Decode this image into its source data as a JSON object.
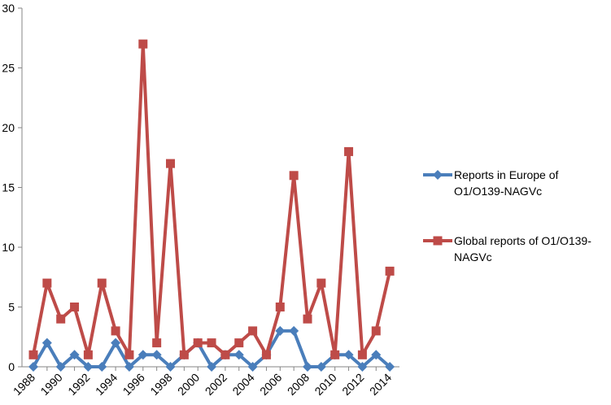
{
  "chart_data": {
    "type": "line",
    "title": "",
    "xlabel": "",
    "ylabel": "",
    "x": [
      1988,
      1989,
      1990,
      1991,
      1992,
      1993,
      1994,
      1995,
      1996,
      1997,
      1998,
      1999,
      2000,
      2001,
      2002,
      2003,
      2004,
      2005,
      2006,
      2007,
      2008,
      2009,
      2010,
      2011,
      2012,
      2013,
      2014
    ],
    "x_tick_labels": [
      "1988",
      "1990",
      "1992",
      "1994",
      "1996",
      "1998",
      "2000",
      "2002",
      "2004",
      "2006",
      "2008",
      "2010",
      "2012",
      "2014"
    ],
    "ylim": [
      0,
      30
    ],
    "y_ticks": [
      0,
      5,
      10,
      15,
      20,
      25,
      30
    ],
    "grid": false,
    "legend_position": "right",
    "series": [
      {
        "name": "Reports in Europe of O1/O139-NAGVc",
        "legend_lines": [
          "Reports in Europe of",
          "O1/O139-NAGVc"
        ],
        "color": "#4A7EBB",
        "marker": "diamond",
        "values": [
          0,
          2,
          0,
          1,
          0,
          0,
          2,
          0,
          1,
          1,
          0,
          1,
          2,
          0,
          1,
          1,
          0,
          1,
          3,
          3,
          0,
          0,
          1,
          1,
          0,
          1,
          0
        ]
      },
      {
        "name": "Global reports of O1/O139-NAGVc",
        "legend_lines": [
          "Global reports of O1/O139-",
          "NAGVc"
        ],
        "color": "#BE4B48",
        "marker": "square",
        "values": [
          1,
          7,
          4,
          5,
          1,
          7,
          3,
          1,
          27,
          2,
          17,
          1,
          2,
          2,
          1,
          2,
          3,
          1,
          5,
          16,
          4,
          7,
          1,
          18,
          1,
          3,
          8
        ]
      }
    ]
  }
}
